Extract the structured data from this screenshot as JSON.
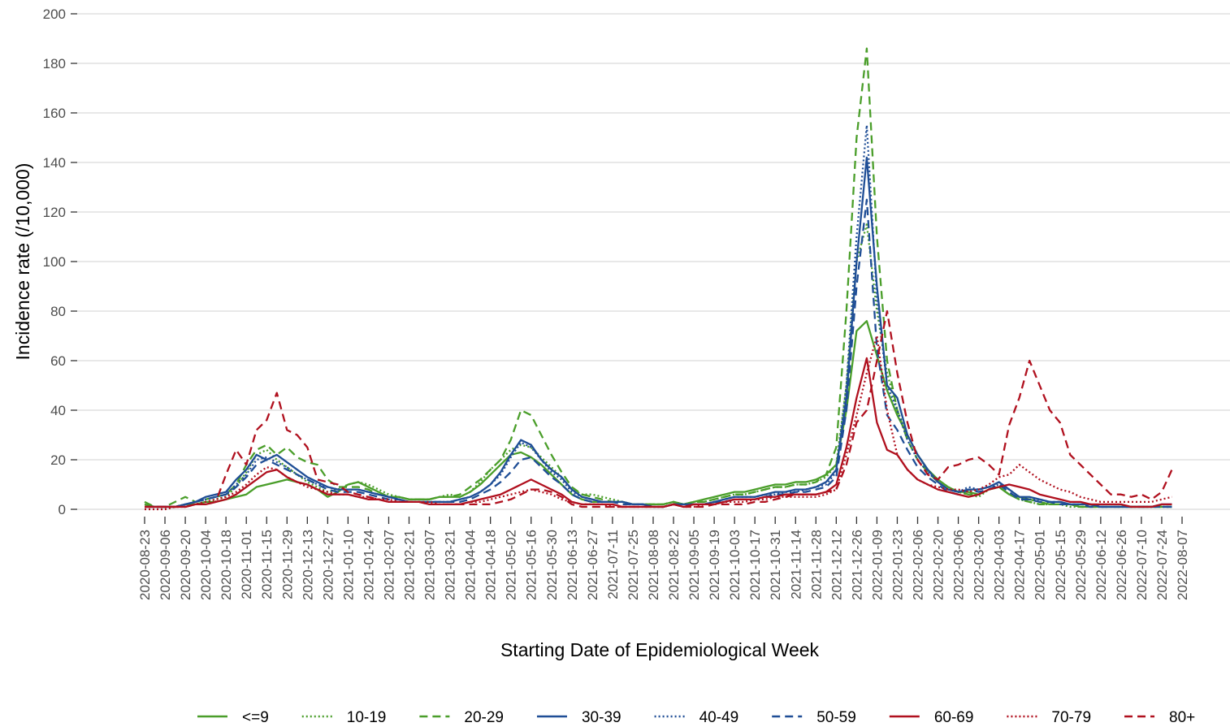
{
  "chart_data": {
    "type": "line",
    "xlabel": "Starting Date of Epidemiological Week",
    "ylabel": "Incidence rate (/10,000)",
    "ylim": [
      0,
      200
    ],
    "yticks": [
      0,
      20,
      40,
      60,
      80,
      100,
      120,
      140,
      160,
      180,
      200
    ],
    "xlim": [
      "2020-08-23",
      "2022-08-07"
    ],
    "grid": true,
    "legend": "bottom",
    "xticks": [
      "2020-08-23",
      "2020-09-06",
      "2020-09-20",
      "2020-10-04",
      "2020-10-18",
      "2020-11-01",
      "2020-11-15",
      "2020-11-29",
      "2020-12-13",
      "2020-12-27",
      "2021-01-10",
      "2021-01-24",
      "2021-02-07",
      "2021-02-21",
      "2021-03-07",
      "2021-03-21",
      "2021-04-04",
      "2021-04-18",
      "2021-05-02",
      "2021-05-16",
      "2021-05-30",
      "2021-06-13",
      "2021-06-27",
      "2021-07-11",
      "2021-07-25",
      "2021-08-08",
      "2021-08-22",
      "2021-09-05",
      "2021-09-19",
      "2021-10-03",
      "2021-10-17",
      "2021-10-31",
      "2021-11-14",
      "2021-11-28",
      "2021-12-12",
      "2021-12-26",
      "2022-01-09",
      "2022-01-23",
      "2022-02-06",
      "2022-02-20",
      "2022-03-06",
      "2022-03-20",
      "2022-04-03",
      "2022-04-17",
      "2022-05-01",
      "2022-05-15",
      "2022-05-29",
      "2022-06-12",
      "2022-06-26",
      "2022-07-10",
      "2022-07-24",
      "2022-08-07"
    ],
    "x": [
      "2020-08-23",
      "2020-08-30",
      "2020-09-06",
      "2020-09-13",
      "2020-09-20",
      "2020-09-27",
      "2020-10-04",
      "2020-10-11",
      "2020-10-18",
      "2020-10-25",
      "2020-11-01",
      "2020-11-08",
      "2020-11-15",
      "2020-11-22",
      "2020-11-29",
      "2020-12-06",
      "2020-12-13",
      "2020-12-20",
      "2020-12-27",
      "2021-01-03",
      "2021-01-10",
      "2021-01-17",
      "2021-01-24",
      "2021-01-31",
      "2021-02-07",
      "2021-02-14",
      "2021-02-21",
      "2021-02-28",
      "2021-03-07",
      "2021-03-14",
      "2021-03-21",
      "2021-03-28",
      "2021-04-04",
      "2021-04-11",
      "2021-04-18",
      "2021-04-25",
      "2021-05-02",
      "2021-05-09",
      "2021-05-16",
      "2021-05-23",
      "2021-05-30",
      "2021-06-06",
      "2021-06-13",
      "2021-06-20",
      "2021-06-27",
      "2021-07-04",
      "2021-07-11",
      "2021-07-18",
      "2021-07-25",
      "2021-08-01",
      "2021-08-08",
      "2021-08-15",
      "2021-08-22",
      "2021-08-29",
      "2021-09-05",
      "2021-09-12",
      "2021-09-19",
      "2021-09-26",
      "2021-10-03",
      "2021-10-10",
      "2021-10-17",
      "2021-10-24",
      "2021-10-31",
      "2021-11-07",
      "2021-11-14",
      "2021-11-21",
      "2021-11-28",
      "2021-12-05",
      "2021-12-12",
      "2021-12-19",
      "2021-12-26",
      "2022-01-02",
      "2022-01-09",
      "2022-01-16",
      "2022-01-23",
      "2022-01-30",
      "2022-02-06",
      "2022-02-13",
      "2022-02-20",
      "2022-02-27",
      "2022-03-06",
      "2022-03-13",
      "2022-03-20",
      "2022-03-27",
      "2022-04-03",
      "2022-04-10",
      "2022-04-17",
      "2022-04-24",
      "2022-05-01",
      "2022-05-08",
      "2022-05-15",
      "2022-05-22",
      "2022-05-29",
      "2022-06-05",
      "2022-06-12",
      "2022-06-19",
      "2022-06-26",
      "2022-07-03",
      "2022-07-10",
      "2022-07-17",
      "2022-07-24",
      "2022-07-31"
    ],
    "series": [
      {
        "name": "<=9",
        "color": "#4a9e2a",
        "dash": "solid",
        "values": [
          2,
          1,
          1,
          1,
          2,
          2,
          3,
          3,
          4,
          5,
          6,
          9,
          10,
          11,
          12,
          11,
          10,
          8,
          5,
          7,
          10,
          11,
          9,
          7,
          5,
          5,
          4,
          4,
          4,
          5,
          5,
          5,
          7,
          10,
          14,
          18,
          22,
          23,
          21,
          18,
          14,
          10,
          6,
          4,
          3,
          3,
          3,
          3,
          2,
          2,
          2,
          2,
          3,
          2,
          3,
          4,
          5,
          6,
          7,
          7,
          8,
          9,
          10,
          10,
          11,
          11,
          12,
          14,
          18,
          40,
          72,
          76,
          62,
          48,
          38,
          30,
          22,
          16,
          12,
          9,
          7,
          7,
          6,
          8,
          9,
          6,
          5,
          4,
          3,
          2,
          2,
          2,
          1,
          1,
          1,
          1,
          1,
          1,
          1,
          1,
          1,
          1
        ]
      },
      {
        "name": "10-19",
        "color": "#4a9e2a",
        "dash": "dotted",
        "values": [
          1,
          1,
          1,
          1,
          2,
          2,
          3,
          4,
          5,
          9,
          15,
          22,
          24,
          20,
          17,
          14,
          11,
          9,
          7,
          8,
          10,
          11,
          10,
          8,
          6,
          5,
          4,
          4,
          4,
          5,
          6,
          5,
          7,
          11,
          16,
          20,
          24,
          26,
          25,
          21,
          17,
          13,
          8,
          6,
          6,
          5,
          4,
          3,
          2,
          2,
          2,
          2,
          3,
          2,
          3,
          3,
          4,
          5,
          6,
          6,
          7,
          8,
          9,
          9,
          10,
          10,
          11,
          13,
          18,
          50,
          100,
          115,
          80,
          55,
          40,
          30,
          22,
          16,
          12,
          9,
          7,
          6,
          5,
          8,
          9,
          6,
          4,
          3,
          2,
          2,
          2,
          1,
          1,
          1,
          1,
          1,
          1,
          1,
          1,
          1,
          1,
          1
        ]
      },
      {
        "name": "20-29",
        "color": "#4a9e2a",
        "dash": "dashed",
        "values": [
          3,
          1,
          1,
          3,
          5,
          3,
          4,
          5,
          6,
          10,
          18,
          24,
          26,
          22,
          25,
          21,
          19,
          18,
          12,
          9,
          9,
          9,
          8,
          6,
          5,
          5,
          4,
          4,
          4,
          5,
          5,
          6,
          9,
          12,
          16,
          20,
          28,
          40,
          38,
          30,
          22,
          15,
          9,
          6,
          5,
          4,
          3,
          3,
          2,
          2,
          2,
          2,
          3,
          2,
          3,
          3,
          4,
          5,
          6,
          6,
          7,
          8,
          9,
          9,
          10,
          10,
          11,
          14,
          25,
          80,
          150,
          186,
          110,
          60,
          40,
          28,
          20,
          15,
          11,
          8,
          7,
          6,
          6,
          8,
          9,
          6,
          4,
          3,
          2,
          2,
          2,
          2,
          1,
          1,
          1,
          1,
          1,
          1,
          1,
          1,
          1,
          1
        ]
      },
      {
        "name": "30-39",
        "color": "#1f4e96",
        "dash": "solid",
        "values": [
          1,
          1,
          1,
          1,
          2,
          3,
          5,
          6,
          7,
          12,
          16,
          22,
          20,
          22,
          19,
          16,
          13,
          11,
          9,
          8,
          8,
          8,
          7,
          6,
          5,
          4,
          3,
          3,
          3,
          3,
          3,
          4,
          5,
          7,
          10,
          15,
          22,
          28,
          26,
          20,
          16,
          13,
          8,
          5,
          4,
          3,
          3,
          3,
          2,
          2,
          1,
          1,
          2,
          2,
          2,
          2,
          3,
          4,
          5,
          5,
          5,
          6,
          7,
          7,
          8,
          8,
          9,
          11,
          16,
          45,
          100,
          142,
          90,
          50,
          45,
          30,
          22,
          16,
          11,
          8,
          7,
          8,
          8,
          9,
          11,
          8,
          5,
          5,
          4,
          3,
          3,
          2,
          2,
          2,
          1,
          1,
          1,
          1,
          1,
          1,
          2,
          2
        ]
      },
      {
        "name": "40-49",
        "color": "#1f4e96",
        "dash": "dotted",
        "values": [
          1,
          1,
          1,
          1,
          2,
          3,
          4,
          5,
          6,
          10,
          14,
          20,
          21,
          19,
          17,
          14,
          12,
          10,
          9,
          8,
          8,
          8,
          7,
          6,
          5,
          4,
          3,
          3,
          3,
          3,
          3,
          4,
          5,
          7,
          10,
          14,
          21,
          27,
          25,
          20,
          15,
          12,
          7,
          5,
          4,
          3,
          3,
          3,
          2,
          2,
          1,
          1,
          2,
          2,
          2,
          2,
          3,
          4,
          5,
          5,
          5,
          6,
          6,
          7,
          7,
          8,
          9,
          10,
          15,
          50,
          110,
          155,
          85,
          50,
          40,
          28,
          20,
          15,
          11,
          8,
          7,
          9,
          8,
          9,
          10,
          8,
          5,
          4,
          4,
          3,
          3,
          2,
          2,
          2,
          1,
          1,
          1,
          1,
          1,
          1,
          1,
          1
        ]
      },
      {
        "name": "50-59",
        "color": "#1f4e96",
        "dash": "dashed",
        "values": [
          1,
          1,
          1,
          1,
          2,
          3,
          4,
          5,
          6,
          9,
          13,
          18,
          20,
          18,
          16,
          14,
          12,
          10,
          8,
          7,
          7,
          7,
          6,
          5,
          4,
          4,
          3,
          3,
          3,
          3,
          3,
          3,
          4,
          6,
          8,
          11,
          15,
          20,
          21,
          17,
          13,
          10,
          6,
          4,
          3,
          3,
          3,
          2,
          2,
          2,
          1,
          1,
          2,
          2,
          2,
          2,
          3,
          3,
          4,
          4,
          4,
          5,
          6,
          6,
          7,
          7,
          8,
          9,
          13,
          40,
          90,
          125,
          65,
          38,
          32,
          24,
          17,
          13,
          10,
          7,
          6,
          8,
          7,
          8,
          10,
          7,
          4,
          4,
          3,
          3,
          2,
          2,
          2,
          1,
          1,
          1,
          1,
          1,
          1,
          1,
          1,
          1
        ]
      },
      {
        "name": "60-69",
        "color": "#b0101e",
        "dash": "solid",
        "values": [
          1,
          1,
          1,
          1,
          1,
          2,
          2,
          3,
          4,
          6,
          9,
          12,
          15,
          16,
          13,
          11,
          10,
          8,
          6,
          6,
          6,
          5,
          4,
          4,
          3,
          3,
          3,
          3,
          2,
          2,
          2,
          2,
          3,
          4,
          5,
          6,
          8,
          10,
          12,
          10,
          8,
          6,
          3,
          2,
          2,
          2,
          2,
          1,
          1,
          1,
          1,
          1,
          2,
          1,
          2,
          2,
          2,
          3,
          4,
          4,
          4,
          5,
          5,
          6,
          6,
          6,
          6,
          7,
          10,
          25,
          45,
          61,
          35,
          24,
          22,
          16,
          12,
          10,
          8,
          7,
          6,
          5,
          6,
          8,
          9,
          10,
          9,
          8,
          6,
          5,
          4,
          3,
          3,
          2,
          2,
          2,
          2,
          1,
          1,
          1,
          2,
          2
        ]
      },
      {
        "name": "70-79",
        "color": "#b0101e",
        "dash": "dotted",
        "values": [
          0,
          0,
          0,
          1,
          1,
          2,
          3,
          4,
          5,
          7,
          10,
          14,
          17,
          16,
          13,
          11,
          9,
          8,
          7,
          6,
          6,
          5,
          5,
          4,
          4,
          3,
          3,
          3,
          3,
          2,
          2,
          2,
          3,
          3,
          4,
          5,
          6,
          7,
          8,
          7,
          6,
          4,
          3,
          2,
          2,
          2,
          1,
          1,
          1,
          1,
          1,
          1,
          2,
          1,
          1,
          2,
          2,
          3,
          3,
          3,
          4,
          4,
          5,
          5,
          5,
          5,
          5,
          6,
          8,
          22,
          38,
          55,
          70,
          40,
          22,
          16,
          12,
          10,
          9,
          8,
          8,
          7,
          8,
          10,
          13,
          14,
          18,
          15,
          12,
          10,
          8,
          7,
          5,
          4,
          3,
          3,
          3,
          3,
          3,
          3,
          4,
          5
        ]
      },
      {
        "name": "80+",
        "color": "#b0101e",
        "dash": "dashed",
        "values": [
          1,
          1,
          1,
          1,
          1,
          2,
          2,
          3,
          14,
          24,
          18,
          32,
          36,
          47,
          32,
          30,
          25,
          12,
          11,
          10,
          7,
          6,
          5,
          4,
          3,
          3,
          3,
          3,
          2,
          2,
          2,
          2,
          2,
          2,
          2,
          3,
          4,
          6,
          8,
          8,
          7,
          5,
          2,
          1,
          1,
          1,
          1,
          1,
          1,
          1,
          1,
          1,
          2,
          1,
          1,
          1,
          2,
          2,
          2,
          2,
          3,
          3,
          4,
          5,
          6,
          6,
          6,
          7,
          8,
          18,
          35,
          40,
          60,
          80,
          55,
          35,
          20,
          14,
          12,
          17,
          18,
          20,
          21,
          18,
          14,
          34,
          45,
          60,
          50,
          40,
          35,
          22,
          18,
          14,
          10,
          6,
          6,
          5,
          6,
          4,
          7,
          16
        ]
      }
    ]
  }
}
